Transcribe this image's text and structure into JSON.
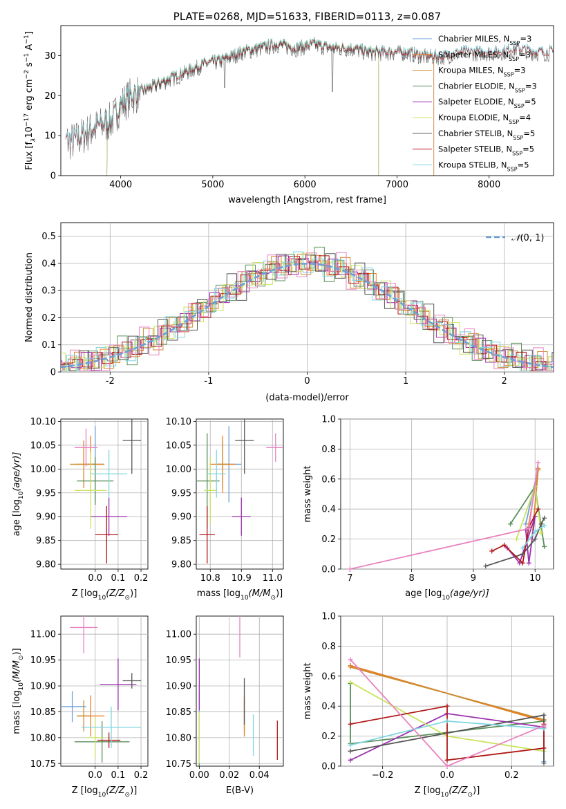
{
  "colors": [
    "#6a9fd8",
    "#f07f1e",
    "#cc8a2e",
    "#5a8f5a",
    "#9b2fae",
    "#c9e45e",
    "#555555",
    "#b01818",
    "#7fd6e0",
    "#e882c0"
  ],
  "charts": [
    {
      "type": "line",
      "title": "PLATE=0268, MJD=51633, FIBERID=0113, z=0.087",
      "xlabel": "wavelength [Angstrom, rest frame]",
      "ylabel": "Flux [f$_\\lambda$10$^{-17}$ erg cm$^{-2}$ s$^{-1}$ A$^{-1}$]",
      "ylabel_display": [
        "Flux [f",
        "λ",
        "10",
        "−17",
        " erg cm",
        "−2",
        " s",
        "−1",
        " A",
        "−1",
        "]"
      ],
      "xlim": [
        3350,
        8700
      ],
      "ylim": [
        0,
        37.5
      ],
      "xticks": [
        4000,
        5000,
        6000,
        7000,
        8000
      ],
      "yticks": [
        0,
        10,
        20,
        30
      ],
      "grid": false,
      "legend_position": "upper-right",
      "spectrum_knots": {
        "wavelength": [
          3500,
          3700,
          3900,
          4000,
          4100,
          4300,
          4500,
          4700,
          4900,
          5100,
          5300,
          5500,
          5700,
          5900,
          6100,
          6300,
          6500,
          6700,
          6900,
          7100,
          7300,
          7500,
          7700,
          7900,
          8100,
          8300,
          8500
        ],
        "flux": [
          9,
          12,
          14,
          18,
          20,
          22,
          24,
          26,
          28,
          29,
          31,
          32,
          33,
          32,
          33,
          32,
          32,
          31,
          31,
          31,
          30,
          30,
          31,
          31,
          31,
          32,
          31
        ]
      },
      "series": [
        {
          "name": "Chabrier MILES, N$_{SSP}$=3",
          "label_main": "Chabrier MILES, N",
          "label_sub": "SSP",
          "label_end": "=3",
          "range": [
            3500,
            7400
          ],
          "edge_drop": [
            7400
          ]
        },
        {
          "name": "Salpeter MILES, N$_{SSP}$=3",
          "label_main": "Salpeter MILES, N",
          "label_sub": "SSP",
          "label_end": "=3",
          "range": [
            3500,
            7400
          ],
          "edge_drop": [
            7400
          ]
        },
        {
          "name": "Kroupa MILES, N$_{SSP}$=3",
          "label_main": "Kroupa MILES, N",
          "label_sub": "SSP",
          "label_end": "=3",
          "range": [
            3500,
            7400
          ],
          "edge_drop": [
            7400
          ]
        },
        {
          "name": "Chabrier ELODIE, N$_{SSP}$=3",
          "label_main": "Chabrier ELODIE, N",
          "label_sub": "SSP",
          "label_end": "=3",
          "range": [
            3850,
            6800
          ],
          "edge_drop": [
            3850,
            6800
          ]
        },
        {
          "name": "Salpeter ELODIE, N$_{SSP}$=5",
          "label_main": "Salpeter ELODIE, N",
          "label_sub": "SSP",
          "label_end": "=5",
          "range": [
            3850,
            6800
          ],
          "edge_drop": [
            3850,
            6800
          ]
        },
        {
          "name": "Kroupa ELODIE, N$_{SSP}$=4",
          "label_main": "Kroupa ELODIE, N",
          "label_sub": "SSP",
          "label_end": "=4",
          "range": [
            3850,
            6800
          ],
          "edge_drop": [
            3850,
            6800
          ]
        },
        {
          "name": "Chabrier STELIB, N$_{SSP}$=5",
          "label_main": "Chabrier STELIB, N",
          "label_sub": "SSP",
          "label_end": "=5",
          "range": [
            3400,
            8700
          ],
          "edge_drop": []
        },
        {
          "name": "Salpeter STELIB, N$_{SSP}$=5",
          "label_main": "Salpeter STELIB, N",
          "label_sub": "SSP",
          "label_end": "=5",
          "range": [
            3400,
            8700
          ],
          "edge_drop": []
        },
        {
          "name": "Kroupa STELIB, N$_{SSP}$=5",
          "label_main": "Kroupa STELIB, N",
          "label_sub": "SSP",
          "label_end": "=5",
          "range": [
            3400,
            8700
          ],
          "edge_drop": []
        }
      ]
    },
    {
      "type": "histogram",
      "xlabel": "(data-model)/error",
      "ylabel": "Normed distribution",
      "xlim": [
        -2.5,
        2.5
      ],
      "ylim": [
        0,
        0.55
      ],
      "xticks": [
        -2,
        -1,
        0,
        1,
        2
      ],
      "yticks": [
        0.0,
        0.1,
        0.2,
        0.3,
        0.4,
        0.5
      ],
      "grid": true,
      "bin_width": 0.1,
      "reference_curve": {
        "name": "$\\mathcal{N}(0,1)$",
        "display_prefix": "𝒩",
        "display_suffix": "(0, 1)",
        "mean": 0,
        "sigma": 1,
        "color": "#6a9fd8"
      },
      "legend_position": "upper-right",
      "bar_variation": [
        0.02,
        -0.015,
        0.03,
        -0.02,
        0.01,
        0.035,
        -0.025,
        0.015,
        -0.03,
        0.025,
        0.0,
        -0.01,
        0.04,
        -0.035,
        0.02,
        0.005,
        -0.02,
        0.03,
        -0.015,
        0.01
      ]
    },
    {
      "type": "scatter-errorbar",
      "xlabel": "Z [log$_{10}$($Z/Z_\\odot$)]",
      "xlabel_display": [
        "Z [log",
        "10",
        "(Z/Z",
        "⊙",
        ")]"
      ],
      "ylabel": "age  [log$_{10}$($age/yr$)]",
      "ylabel_display": [
        "age  [log",
        "10",
        "(age/yr)]"
      ],
      "xlim": [
        -0.15,
        0.23
      ],
      "ylim": [
        9.79,
        10.105
      ],
      "xticks": [
        0.0,
        0.1,
        0.2
      ],
      "xticklabels": [
        "0.0",
        "0.1",
        "0.2"
      ],
      "yticks": [
        9.8,
        9.85,
        9.9,
        9.95,
        10.0,
        10.05,
        10.1
      ],
      "yticklabels": [
        "9.80",
        "9.85",
        "9.90",
        "9.95",
        "10.00",
        "10.05",
        "10.10"
      ],
      "grid": true,
      "points": [
        {
          "x": 0.0,
          "y": 10.01,
          "xerr": 0.04,
          "yerr": 0.08,
          "c": 0
        },
        {
          "x": -0.02,
          "y": 10.01,
          "xerr": 0.06,
          "yerr": 0.06,
          "c": 1
        },
        {
          "x": -0.05,
          "y": 10.01,
          "xerr": 0.06,
          "yerr": 0.05,
          "c": 2
        },
        {
          "x": 0.0,
          "y": 9.975,
          "xerr": 0.08,
          "yerr": 0.05,
          "c": 3
        },
        {
          "x": 0.06,
          "y": 9.9,
          "xerr": 0.08,
          "yerr": 0.04,
          "c": 4
        },
        {
          "x": -0.02,
          "y": 9.955,
          "xerr": 0.07,
          "yerr": 0.08,
          "c": 5
        },
        {
          "x": 0.16,
          "y": 10.06,
          "xerr": 0.04,
          "yerr": 0.07,
          "c": 6
        },
        {
          "x": 0.05,
          "y": 9.862,
          "xerr": 0.05,
          "yerr": 0.06,
          "c": 7
        },
        {
          "x": 0.06,
          "y": 9.99,
          "xerr": 0.08,
          "yerr": 0.05,
          "c": 8
        },
        {
          "x": -0.04,
          "y": 10.045,
          "xerr": 0.05,
          "yerr": 0.04,
          "c": 9
        }
      ]
    },
    {
      "type": "scatter-errorbar",
      "xlabel": "mass [log$_{10}$($M/M_\\odot$)]",
      "xlabel_display": [
        "mass [log",
        "10",
        "(M/M",
        "⊙",
        ")]"
      ],
      "ylabel": "",
      "xlim": [
        10.755,
        11.035
      ],
      "ylim": [
        9.79,
        10.105
      ],
      "xticks": [
        10.8,
        10.9,
        11.0
      ],
      "xticklabels": [
        "10.8",
        "10.9",
        "11.0"
      ],
      "yticks": [
        9.8,
        9.85,
        9.9,
        9.95,
        10.0,
        10.05,
        10.1
      ],
      "yticklabels": [
        "9.80",
        "9.85",
        "9.90",
        "9.95",
        "10.00",
        "10.05",
        "10.10"
      ],
      "grid": true,
      "points": [
        {
          "x": 10.86,
          "y": 10.01,
          "xerr": 0.04,
          "yerr": 0.08,
          "c": 0
        },
        {
          "x": 10.84,
          "y": 10.01,
          "xerr": 0.04,
          "yerr": 0.06,
          "c": 1
        },
        {
          "x": 10.84,
          "y": 10.01,
          "xerr": 0.02,
          "yerr": 0.05,
          "c": 2
        },
        {
          "x": 10.79,
          "y": 9.975,
          "xerr": 0.04,
          "yerr": 0.1,
          "c": 3
        },
        {
          "x": 10.9,
          "y": 9.9,
          "xerr": 0.03,
          "yerr": 0.04,
          "c": 4
        },
        {
          "x": 10.8,
          "y": 9.955,
          "xerr": 0.02,
          "yerr": 0.07,
          "c": 5
        },
        {
          "x": 10.91,
          "y": 10.06,
          "xerr": 0.03,
          "yerr": 0.07,
          "c": 6
        },
        {
          "x": 10.79,
          "y": 9.862,
          "xerr": 0.025,
          "yerr": 0.06,
          "c": 7
        },
        {
          "x": 10.82,
          "y": 9.99,
          "xerr": 0.03,
          "yerr": 0.05,
          "c": 8
        },
        {
          "x": 11.01,
          "y": 10.045,
          "xerr": 0.03,
          "yerr": 0.03,
          "c": 9
        }
      ]
    },
    {
      "type": "line-markers",
      "xlabel": "age  [log$_{10}$($age/yr$)]",
      "xlabel_display": [
        "age  [log",
        "10",
        "(age/yr)]"
      ],
      "ylabel": "mass weight",
      "xlim": [
        6.85,
        10.3
      ],
      "ylim": [
        0,
        1.0
      ],
      "xticks": [
        7,
        8,
        9,
        10
      ],
      "xticklabels": [
        "7",
        "8",
        "9",
        "10"
      ],
      "yticks": [
        0.0,
        0.2,
        0.4,
        0.6,
        0.8,
        1.0
      ],
      "yticklabels": [
        "0.0",
        "0.2",
        "0.4",
        "0.6",
        "0.8",
        "1.0"
      ],
      "grid": true,
      "series": [
        {
          "c": 0,
          "x": [
            9.85,
            10.05
          ],
          "y": [
            0.3,
            0.67
          ]
        },
        {
          "c": 1,
          "x": [
            9.9,
            10.05
          ],
          "y": [
            0.3,
            0.67
          ]
        },
        {
          "c": 2,
          "x": [
            9.95,
            10.05
          ],
          "y": [
            0.2,
            0.66
          ]
        },
        {
          "c": 3,
          "x": [
            9.6,
            10.0,
            10.15
          ],
          "y": [
            0.3,
            0.55,
            0.15
          ]
        },
        {
          "c": 4,
          "x": [
            9.55,
            9.75,
            10.0,
            9.9,
            9.85
          ],
          "y": [
            0.14,
            0.04,
            0.35,
            0.04,
            0.26
          ]
        },
        {
          "c": 5,
          "x": [
            9.7,
            10.0,
            10.1
          ],
          "y": [
            0.2,
            0.55,
            0.24
          ]
        },
        {
          "c": 6,
          "x": [
            9.2,
            9.8,
            10.0,
            10.1,
            10.15
          ],
          "y": [
            0.02,
            0.1,
            0.2,
            0.3,
            0.34
          ]
        },
        {
          "c": 7,
          "x": [
            9.3,
            9.5,
            9.8,
            9.9,
            10.05
          ],
          "y": [
            0.12,
            0.16,
            0.04,
            0.28,
            0.4
          ]
        },
        {
          "c": 8,
          "x": [
            9.8,
            10.0,
            10.15
          ],
          "y": [
            0.14,
            0.25,
            0.29
          ]
        },
        {
          "c": 9,
          "x": [
            7.0,
            9.9,
            10.05
          ],
          "y": [
            0.0,
            0.27,
            0.71
          ]
        }
      ]
    },
    {
      "type": "scatter-errorbar",
      "xlabel": "Z [log$_{10}$($Z/Z_\\odot$)]",
      "xlabel_display": [
        "Z [log",
        "10",
        "(Z/Z",
        "⊙",
        ")]"
      ],
      "ylabel": "mass [log$_{10}$($M/M_\\odot$)]",
      "ylabel_display": [
        "mass [log",
        "10",
        "(M/M",
        "⊙",
        ")]"
      ],
      "xlim": [
        -0.15,
        0.23
      ],
      "ylim": [
        10.745,
        11.035
      ],
      "xticks": [
        0.0,
        0.1,
        0.2
      ],
      "xticklabels": [
        "0.0",
        "0.1",
        "0.2"
      ],
      "yticks": [
        10.75,
        10.8,
        10.85,
        10.9,
        10.95,
        11.0
      ],
      "yticklabels": [
        "10.75",
        "10.80",
        "10.85",
        "10.90",
        "10.95",
        "11.00"
      ],
      "grid": true,
      "points": [
        {
          "x": -0.1,
          "y": 10.86,
          "xerr": 0.06,
          "yerr": 0.03,
          "c": 0
        },
        {
          "x": -0.02,
          "y": 10.842,
          "xerr": 0.06,
          "yerr": 0.04,
          "c": 1
        },
        {
          "x": -0.05,
          "y": 10.842,
          "xerr": 0.03,
          "yerr": 0.03,
          "c": 2
        },
        {
          "x": 0.03,
          "y": 10.792,
          "xerr": 0.12,
          "yerr": 0.04,
          "c": 3
        },
        {
          "x": 0.1,
          "y": 10.903,
          "xerr": 0.08,
          "yerr": 0.05,
          "c": 4
        },
        {
          "x": 0.0,
          "y": 10.8,
          "xerr": 0.04,
          "yerr": 0.04,
          "c": 5
        },
        {
          "x": 0.16,
          "y": 10.91,
          "xerr": 0.04,
          "yerr": 0.015,
          "c": 6
        },
        {
          "x": 0.06,
          "y": 10.795,
          "xerr": 0.05,
          "yerr": 0.015,
          "c": 7
        },
        {
          "x": 0.07,
          "y": 10.82,
          "xerr": 0.13,
          "yerr": 0.04,
          "c": 8
        },
        {
          "x": -0.05,
          "y": 11.013,
          "xerr": 0.06,
          "yerr": 0.05,
          "c": 9
        }
      ]
    },
    {
      "type": "scatter-errorbar",
      "xlabel": "E(B-V)",
      "ylabel": "",
      "xlim": [
        -0.002,
        0.056
      ],
      "ylim": [
        10.745,
        11.035
      ],
      "xticks": [
        0.0,
        0.02,
        0.04
      ],
      "xticklabels": [
        "0.00",
        "0.02",
        "0.04"
      ],
      "yticks": [
        10.75,
        10.8,
        10.85,
        10.9,
        10.95,
        11.0
      ],
      "yticklabels": [
        "10.75",
        "10.80",
        "10.85",
        "10.90",
        "10.95",
        "11.00"
      ],
      "grid": true,
      "points": [
        {
          "x": 0.0,
          "y": 10.86,
          "xerr": 0.0,
          "yerr": 0.03,
          "c": 0
        },
        {
          "x": 0.03,
          "y": 10.842,
          "xerr": 0.0,
          "yerr": 0.04,
          "c": 1
        },
        {
          "x": 0.03,
          "y": 10.842,
          "xerr": 0.0,
          "yerr": 0.03,
          "c": 2
        },
        {
          "x": 0.0,
          "y": 10.79,
          "xerr": 0.0,
          "yerr": 0.05,
          "c": 3
        },
        {
          "x": 0.0,
          "y": 10.903,
          "xerr": 0.0,
          "yerr": 0.05,
          "c": 4
        },
        {
          "x": 0.0,
          "y": 10.8,
          "xerr": 0.0,
          "yerr": 0.05,
          "c": 5
        },
        {
          "x": 0.03,
          "y": 10.87,
          "xerr": 0.0,
          "yerr": 0.045,
          "c": 6
        },
        {
          "x": 0.052,
          "y": 10.795,
          "xerr": 0.0,
          "yerr": 0.038,
          "c": 7
        },
        {
          "x": 0.036,
          "y": 10.805,
          "xerr": 0.0,
          "yerr": 0.04,
          "c": 8
        },
        {
          "x": 0.027,
          "y": 11.0,
          "xerr": 0.0,
          "yerr": 0.045,
          "c": 9
        }
      ]
    },
    {
      "type": "line-markers",
      "xlabel": "Z [log$_{10}$($Z/Z_\\odot$)]",
      "xlabel_display": [
        "Z [log",
        "10",
        "(Z/Z",
        "⊙",
        ")]"
      ],
      "ylabel": "mass weight",
      "xlim": [
        -0.33,
        0.33
      ],
      "ylim": [
        0,
        1.0
      ],
      "xticks": [
        -0.2,
        0.0,
        0.2
      ],
      "xticklabels": [
        "−0.2",
        "0.0",
        "0.2"
      ],
      "yticks": [
        0.0,
        0.2,
        0.4,
        0.6,
        0.8,
        1.0
      ],
      "yticklabels": [
        "0.0",
        "0.2",
        "0.4",
        "0.6",
        "0.8",
        "1.0"
      ],
      "grid": true,
      "series": [
        {
          "c": 0,
          "x": [
            -0.3,
            0.3,
            0.3
          ],
          "y": [
            0.67,
            0.3,
            0.03
          ]
        },
        {
          "c": 1,
          "x": [
            -0.3,
            0.3
          ],
          "y": [
            0.67,
            0.3
          ]
        },
        {
          "c": 2,
          "x": [
            -0.3,
            0.3
          ],
          "y": [
            0.66,
            0.31
          ]
        },
        {
          "c": 3,
          "x": [
            -0.3,
            -0.3,
            0.3
          ],
          "y": [
            0.55,
            0.15,
            0.3
          ]
        },
        {
          "c": 4,
          "x": [
            -0.3,
            0.0,
            0.3
          ],
          "y": [
            0.04,
            0.35,
            0.26
          ]
        },
        {
          "c": 5,
          "x": [
            -0.3,
            0.0,
            0.3
          ],
          "y": [
            0.56,
            0.2,
            0.1
          ]
        },
        {
          "c": 6,
          "x": [
            -0.3,
            0.3,
            0.3
          ],
          "y": [
            0.1,
            0.34,
            0.02
          ]
        },
        {
          "c": 7,
          "x": [
            -0.3,
            0.0,
            0.0,
            0.3,
            0.3
          ],
          "y": [
            0.28,
            0.4,
            0.04,
            0.12,
            0.28
          ]
        },
        {
          "c": 8,
          "x": [
            -0.3,
            0.0,
            0.3
          ],
          "y": [
            0.14,
            0.3,
            0.25
          ]
        },
        {
          "c": 9,
          "x": [
            -0.3,
            0.0,
            0.3
          ],
          "y": [
            0.71,
            0.0,
            0.27
          ]
        }
      ]
    }
  ]
}
